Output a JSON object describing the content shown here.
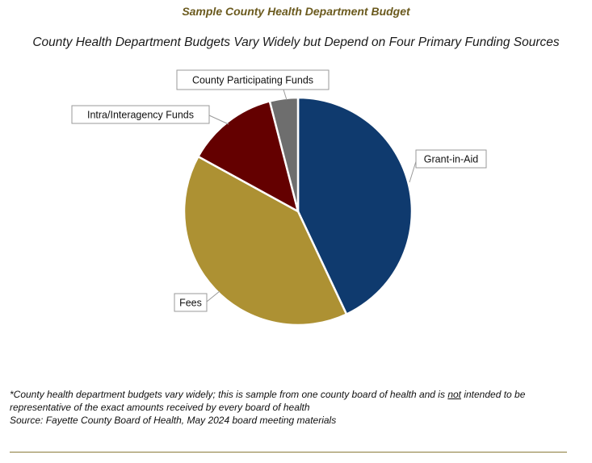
{
  "chart_data": {
    "type": "pie",
    "title": "Sample County Health Department Budget",
    "subtitle": "County Health Department Budgets Vary Widely but Depend on Four Primary Funding Sources",
    "slices": [
      {
        "label": "Grant-in-Aid",
        "value": 43,
        "color": "#0f3a6e"
      },
      {
        "label": "Fees",
        "value": 40,
        "color": "#ad9133"
      },
      {
        "label": "Intra/Interagency Funds",
        "value": 13,
        "color": "#640000"
      },
      {
        "label": "County Participating Funds",
        "value": 4,
        "color": "#6e6e6e"
      }
    ]
  },
  "footnote": {
    "line1_before": "*County health department budgets vary widely; this is sample from one county board of health and is ",
    "line1_underlined": "not",
    "line1_after": " intended to be representative of the exact amounts received by every board of health",
    "source": "Source: Fayette County Board of Health, May 2024 board meeting materials"
  }
}
